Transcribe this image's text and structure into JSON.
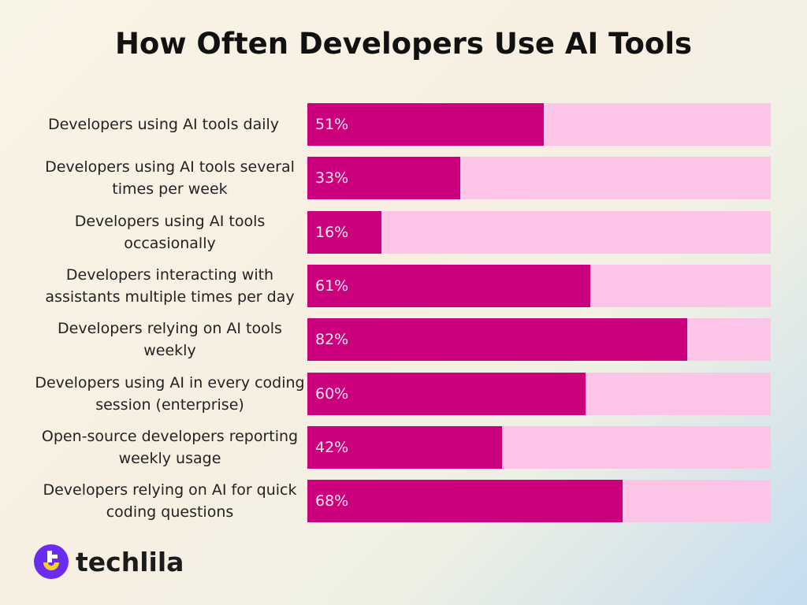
{
  "chart_data": {
    "type": "bar",
    "orientation": "horizontal",
    "title": "How Often Developers Use AI Tools",
    "categories": [
      "Developers using AI tools daily",
      "Developers using AI tools several times per week",
      "Developers using AI tools occasionally",
      "Developers interacting with assistants multiple times per day",
      "Developers relying on AI tools weekly",
      "Developers using AI in every coding session (enterprise)",
      "Open-source developers reporting weekly usage",
      "Developers relying on AI for quick coding questions"
    ],
    "values": [
      51,
      33,
      16,
      61,
      82,
      60,
      42,
      68
    ],
    "data_labels": [
      "51%",
      "33%",
      "16%",
      "61%",
      "82%",
      "60%",
      "42%",
      "68%"
    ],
    "xlim": [
      0,
      100
    ],
    "grid": false,
    "colors": {
      "fill": "#cc007c",
      "track": "#fcc4e6"
    }
  },
  "brand": {
    "name": "techlila",
    "colors": {
      "purple": "#6a2cf0",
      "yellow": "#f7cf2a"
    }
  }
}
